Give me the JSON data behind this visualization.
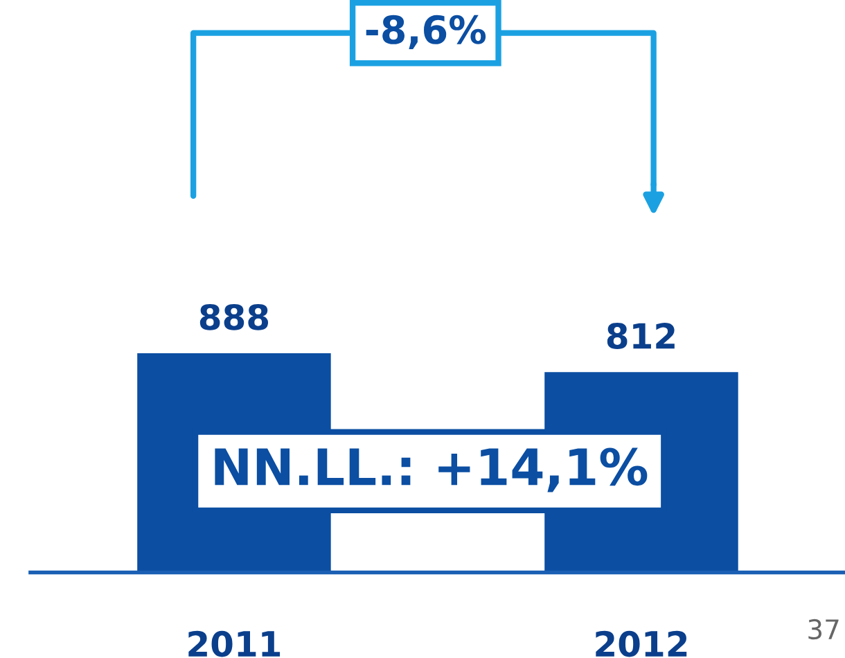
{
  "chart_data": {
    "type": "bar",
    "categories": [
      "2011",
      "2012"
    ],
    "values": [
      888,
      812
    ],
    "color": "#0b4ea2",
    "data_labels": true,
    "annotations": [
      "-8,6%",
      "NN.LL.: +14,1%",
      "37"
    ]
  }
}
